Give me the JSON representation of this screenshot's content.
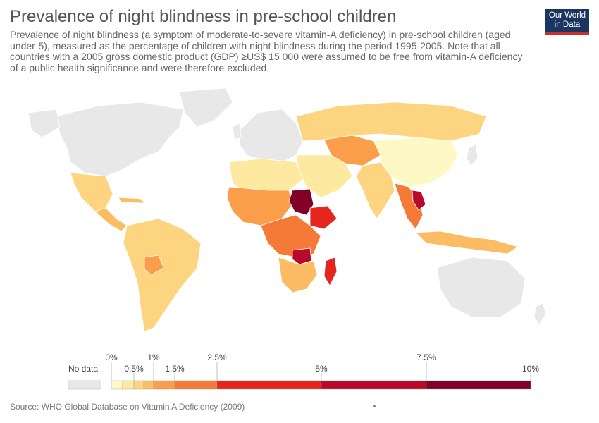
{
  "title": "Prevalence of night blindness in pre-school children",
  "subtitle": "Prevalence of night blindness (a symptom of moderate-to-severe vitamin-A deficiency) in pre-school children (aged under-5), measured as the percentage of children with night blindness during the period 1995-2005. Note that all countries with a 2005 gross domestic product (GDP) ≥US$ 15 000 were assumed to be free from vitamin-A deficiency of a public health significance and were therefore excluded.",
  "logo": {
    "line1": "Our World",
    "line2": "in Data",
    "bg": "#1a3560",
    "accent": "#c8312b"
  },
  "source": "Source: WHO Global Database on Vitamin A Deficiency (2009)",
  "legend": {
    "no_data_label": "No data",
    "no_data_color": "#e8e8e8",
    "bins": [
      {
        "from": 0,
        "to": 0.25,
        "color": "#fef9c4"
      },
      {
        "from": 0.25,
        "to": 0.5,
        "color": "#fdeaa0"
      },
      {
        "from": 0.5,
        "to": 0.75,
        "color": "#fdd580"
      },
      {
        "from": 0.75,
        "to": 1,
        "color": "#fcbc63"
      },
      {
        "from": 1,
        "to": 1.5,
        "color": "#fb9e4a"
      },
      {
        "from": 1.5,
        "to": 2.5,
        "color": "#f57a37"
      },
      {
        "from": 2.5,
        "to": 5,
        "color": "#e4261e"
      },
      {
        "from": 5,
        "to": 7.5,
        "color": "#b8092a"
      },
      {
        "from": 7.5,
        "to": 10,
        "color": "#800026"
      }
    ],
    "ticks": [
      {
        "value": 0,
        "label": "0%",
        "row": "top"
      },
      {
        "value": 0.5,
        "label": "0.5%",
        "row": "bottom"
      },
      {
        "value": 1,
        "label": "1%",
        "row": "top"
      },
      {
        "value": 1.5,
        "label": "1.5%",
        "row": "bottom"
      },
      {
        "value": 2.5,
        "label": "2.5%",
        "row": "top"
      },
      {
        "value": 5,
        "label": "5%",
        "row": "bottom"
      },
      {
        "value": 7.5,
        "label": "7.5%",
        "row": "top"
      },
      {
        "value": 10,
        "label": "10%",
        "row": "bottom"
      }
    ]
  },
  "map": {
    "no_data_color": "#e8e8e8",
    "ocean_color": "#ffffff",
    "regions": [
      {
        "name": "north-america",
        "color": "#e8e8e8"
      },
      {
        "name": "greenland",
        "color": "#e8e8e8"
      },
      {
        "name": "mexico",
        "color": "#fdd580"
      },
      {
        "name": "central-america",
        "color": "#fcbc63"
      },
      {
        "name": "south-america",
        "color": "#fdd580"
      },
      {
        "name": "bolivia",
        "color": "#fb9e4a"
      },
      {
        "name": "europe",
        "color": "#e8e8e8"
      },
      {
        "name": "russia",
        "color": "#fdd580"
      },
      {
        "name": "central-asia",
        "color": "#fb9e4a"
      },
      {
        "name": "china",
        "color": "#fef9c4"
      },
      {
        "name": "india",
        "color": "#fdd580"
      },
      {
        "name": "middle-east",
        "color": "#fdeaa0"
      },
      {
        "name": "north-africa",
        "color": "#fdeaa0"
      },
      {
        "name": "west-africa",
        "color": "#fb9e4a"
      },
      {
        "name": "sudan",
        "color": "#800026"
      },
      {
        "name": "ethiopia",
        "color": "#e4261e"
      },
      {
        "name": "central-africa",
        "color": "#f57a37"
      },
      {
        "name": "southern-africa",
        "color": "#fcbc63"
      },
      {
        "name": "zambia",
        "color": "#b8092a"
      },
      {
        "name": "madagascar",
        "color": "#e4261e"
      },
      {
        "name": "southeast-asia",
        "color": "#f57a37"
      },
      {
        "name": "laos",
        "color": "#b8092a"
      },
      {
        "name": "indonesia",
        "color": "#fcbc63"
      },
      {
        "name": "australia",
        "color": "#e8e8e8"
      },
      {
        "name": "japan",
        "color": "#e8e8e8"
      },
      {
        "name": "antarctic-ish",
        "color": "#e8e8e8"
      }
    ]
  }
}
